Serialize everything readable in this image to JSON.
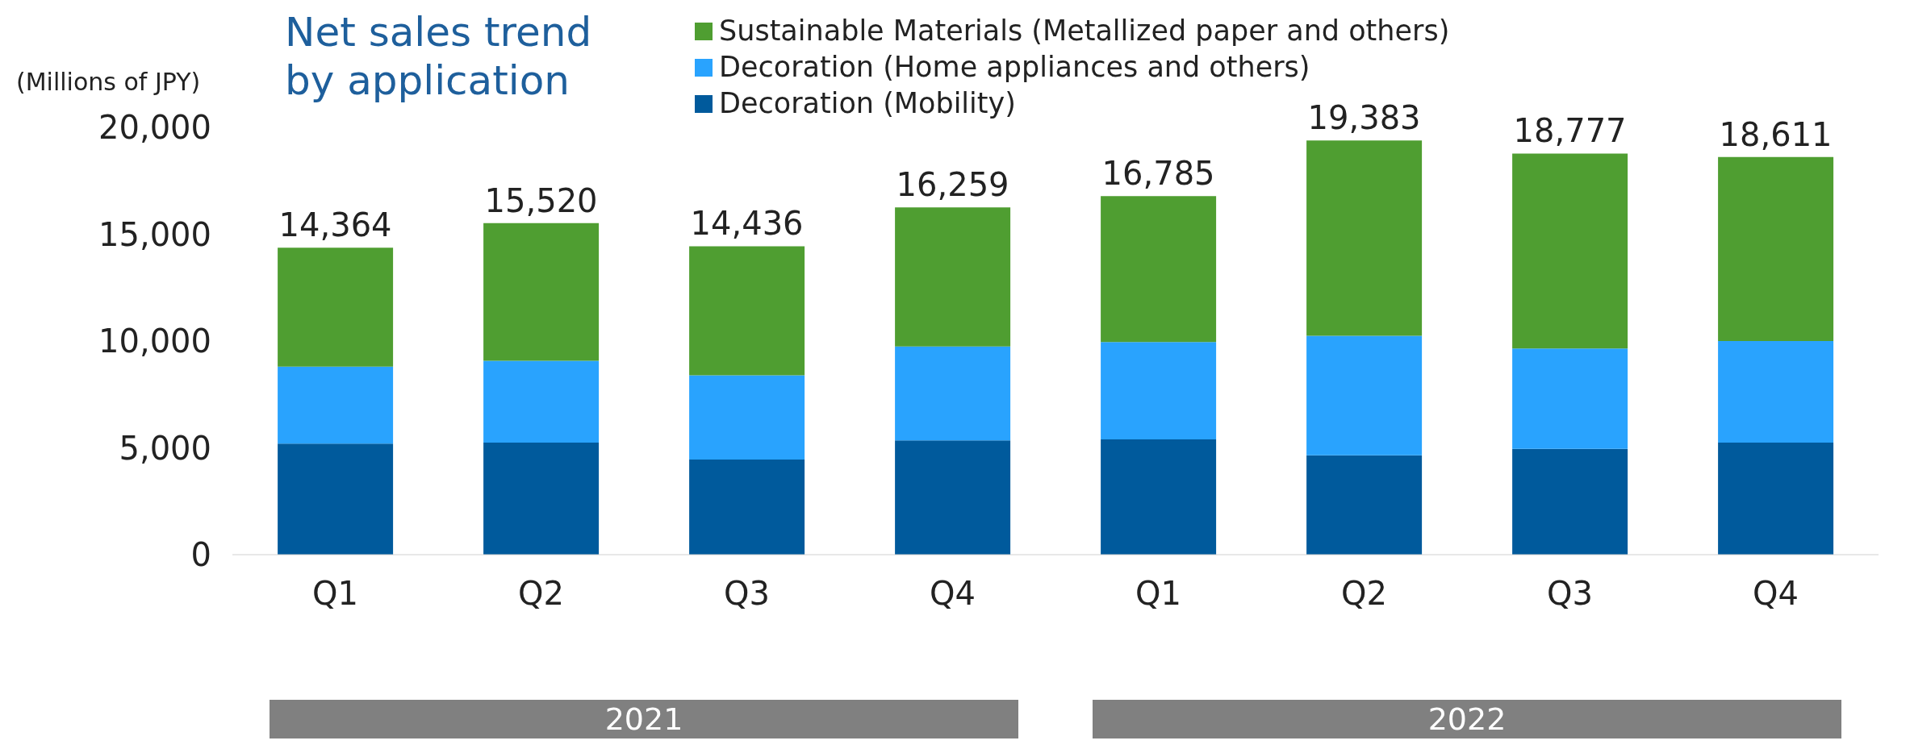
{
  "chart_data": {
    "type": "bar",
    "title": "Net sales trend\nby application",
    "ylabel": "(Millions of JPY)",
    "categories": [
      "Q1",
      "Q2",
      "Q3",
      "Q4",
      "Q1",
      "Q2",
      "Q3",
      "Q4"
    ],
    "stacked": true,
    "series": [
      {
        "name": "Decoration (Mobility)",
        "color": "#005a9c",
        "values": [
          5200,
          5250,
          4450,
          5350,
          5400,
          4650,
          4950,
          5250
        ]
      },
      {
        "name": "Decoration (Home appliances and others)",
        "color": "#29a3fe",
        "values": [
          3600,
          3830,
          3950,
          4400,
          4550,
          5600,
          4700,
          4750
        ]
      },
      {
        "name": "Sustainable Materials (Metallized paper and others)",
        "color": "#4f9e31",
        "values": [
          5564,
          6440,
          6036,
          6509,
          6835,
          9133,
          9127,
          8611
        ]
      }
    ],
    "totals": [
      "14,364",
      "15,520",
      "14,436",
      "16,259",
      "16,785",
      "19,383",
      "18,777",
      "18,611"
    ],
    "ylim": [
      0,
      20000
    ],
    "yticks": [
      {
        "value": 0,
        "label": "0"
      },
      {
        "value": 5000,
        "label": "5,000"
      },
      {
        "value": 10000,
        "label": "10,000"
      },
      {
        "value": 15000,
        "label": "15,000"
      },
      {
        "value": 20000,
        "label": "20,000"
      }
    ],
    "grid": false,
    "legend": "top",
    "annotations": [
      "2021",
      "2022"
    ]
  }
}
